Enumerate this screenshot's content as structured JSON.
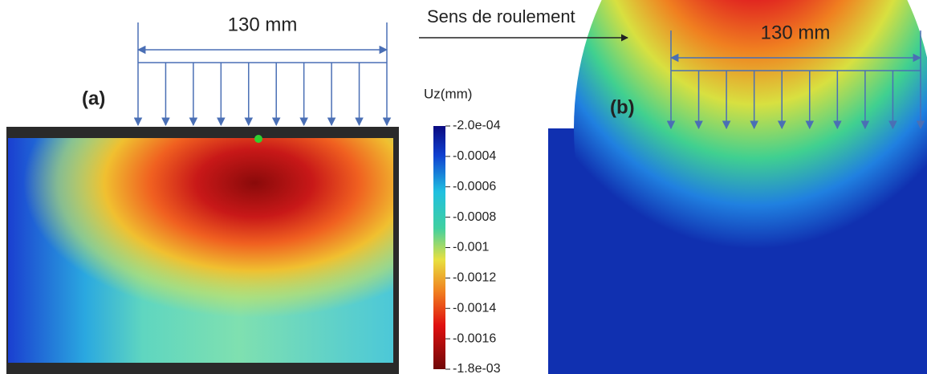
{
  "panel_a": {
    "label": "(a)",
    "dimension": "130 mm"
  },
  "panel_b": {
    "label": "(b)",
    "dimension": "130 mm"
  },
  "direction": "Sens de roulement",
  "colorbar": {
    "title": "Uz(mm)",
    "tick_labels": [
      "-2.0e-04",
      "-0.0004",
      "-0.0006",
      "-0.0008",
      "-0.001",
      "-0.0012",
      "-0.0014",
      "-0.0016",
      "-1.8e-03"
    ]
  }
}
